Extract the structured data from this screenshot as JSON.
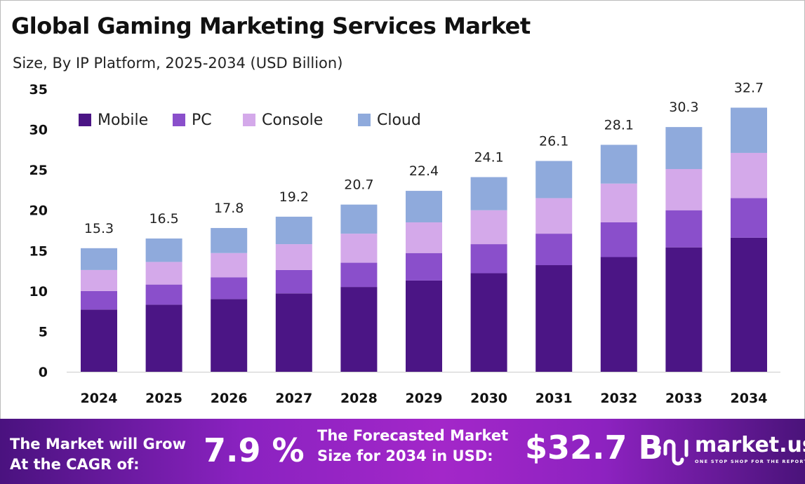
{
  "title": "Global Gaming Marketing Services Market",
  "subtitle": "Size, By IP Platform, 2025-2034 (USD Billion)",
  "chart_data": {
    "type": "bar",
    "stacked": true,
    "categories": [
      "2024",
      "2025",
      "2026",
      "2027",
      "2028",
      "2029",
      "2030",
      "2031",
      "2032",
      "2033",
      "2034"
    ],
    "series": [
      {
        "name": "Mobile",
        "color": "#4b1585",
        "values": [
          7.7,
          8.3,
          9.0,
          9.7,
          10.5,
          11.3,
          12.2,
          13.2,
          14.2,
          15.4,
          16.6
        ]
      },
      {
        "name": "PC",
        "color": "#8a4fcb",
        "values": [
          2.3,
          2.5,
          2.7,
          2.9,
          3.0,
          3.4,
          3.6,
          3.9,
          4.3,
          4.6,
          4.9
        ]
      },
      {
        "name": "Console",
        "color": "#d4a9ea",
        "values": [
          2.6,
          2.8,
          3.0,
          3.2,
          3.6,
          3.8,
          4.2,
          4.4,
          4.8,
          5.1,
          5.6
        ]
      },
      {
        "name": "Cloud",
        "color": "#8faadc",
        "values": [
          2.7,
          2.9,
          3.1,
          3.4,
          3.6,
          3.9,
          4.1,
          4.6,
          4.8,
          5.2,
          5.6
        ]
      }
    ],
    "totals": [
      "15.3",
      "16.5",
      "17.8",
      "19.2",
      "20.7",
      "22.4",
      "24.1",
      "26.1",
      "28.1",
      "30.3",
      "32.7"
    ],
    "yticks": [
      "0",
      "5",
      "10",
      "15",
      "20",
      "25",
      "30",
      "35"
    ],
    "ylim": [
      0,
      35
    ],
    "grid": false,
    "legend": "top-left"
  },
  "banner": {
    "cagr_label_1": "The Market will Grow",
    "cagr_label_2": "At the CAGR of:",
    "cagr_value": "7.9 %",
    "forecast_label_1": "The Forecasted Market",
    "forecast_label_2": "Size for 2034 in USD:",
    "forecast_value": "$32.7 B",
    "logo_name": "market.us",
    "logo_tagline": "ONE STOP SHOP FOR THE REPORTS"
  }
}
